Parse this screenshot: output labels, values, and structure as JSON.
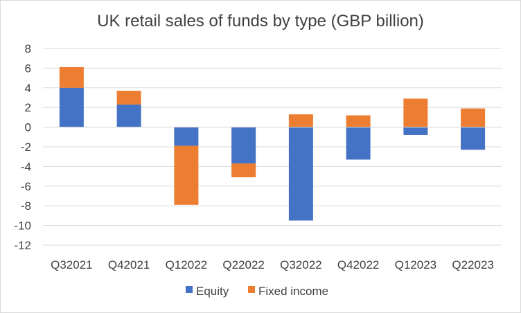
{
  "chart_data": {
    "type": "bar",
    "stacked": true,
    "title": "UK retail sales of funds by type (GBP billion)",
    "xlabel": "",
    "ylabel": "",
    "categories": [
      "Q32021",
      "Q42021",
      "Q12022",
      "Q22022",
      "Q32022",
      "Q42022",
      "Q12023",
      "Q22023"
    ],
    "series": [
      {
        "name": "Equity",
        "color": "#4472C4",
        "values": [
          4.0,
          2.3,
          -1.9,
          -3.7,
          -9.5,
          -3.3,
          -0.8,
          -2.3
        ]
      },
      {
        "name": "Fixed income",
        "color": "#ED7D31",
        "values": [
          2.1,
          1.4,
          -6.0,
          -1.4,
          1.3,
          1.2,
          2.9,
          1.9
        ]
      }
    ],
    "ylim": [
      -12,
      8
    ],
    "yticks": [
      "8",
      "6",
      "4",
      "2",
      "0",
      "-2",
      "-4",
      "-6",
      "-8",
      "-10",
      "-12"
    ],
    "grid": true,
    "legend_position": "bottom"
  }
}
